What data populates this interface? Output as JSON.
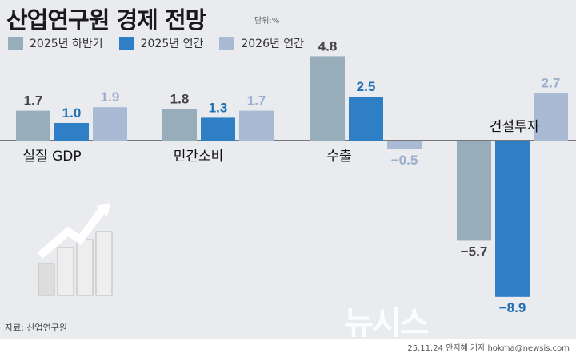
{
  "title": "산업연구원 경제 전망",
  "unit": "단위:%",
  "source": "자료: 산업연구원",
  "credit": "25.11.24 안지혜 기자 hokma@newsis.com",
  "watermark": "뉴시스",
  "colors": {
    "half": "#98adba",
    "annual": "#2f7fc6",
    "next": "#a9bad4",
    "half_text": "#444444",
    "annual_text": "#1f6fb5",
    "next_text": "#9cb0cc"
  },
  "chart_data": {
    "type": "bar",
    "title": "산업연구원 경제 전망",
    "ylabel": "%",
    "categories": [
      "실질 GDP",
      "민간소비",
      "수출",
      "건설투자"
    ],
    "series": [
      {
        "name": "2025년 하반기",
        "values": [
          1.7,
          1.8,
          4.8,
          -5.7
        ]
      },
      {
        "name": "2025년 연간",
        "values": [
          1.0,
          1.3,
          2.5,
          -8.9
        ]
      },
      {
        "name": "2026년 연간",
        "values": [
          1.9,
          1.7,
          -0.5,
          2.7
        ]
      }
    ],
    "legend": "top-left"
  }
}
